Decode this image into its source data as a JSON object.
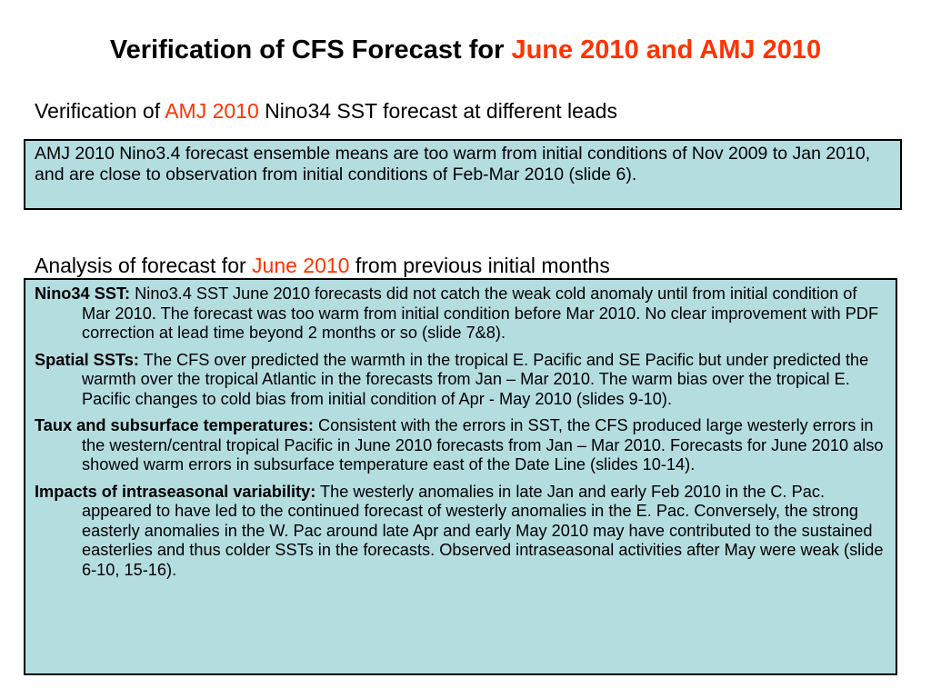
{
  "title": {
    "prefix": "Verification of CFS Forecast for ",
    "highlight": "June 2010 and AMJ 2010"
  },
  "section1": {
    "heading_prefix": "Verification of ",
    "heading_highlight": "AMJ 2010",
    "heading_suffix": " Nino34 SST forecast at different leads",
    "box_text": "AMJ 2010 Nino3.4 forecast ensemble means are too warm from initial conditions of Nov 2009 to Jan 2010, and are close to observation from initial conditions of Feb-Mar 2010 (slide 6)."
  },
  "section2": {
    "heading_prefix": "Analysis of forecast for ",
    "heading_highlight": "June 2010",
    "heading_suffix": " from previous initial months",
    "items": [
      {
        "label": "Nino34 SST:",
        "text": " Nino3.4 SST June 2010 forecasts did not catch the weak cold anomaly until from initial condition of Mar 2010. The forecast was too warm from initial condition before Mar 2010. No clear improvement with PDF correction at lead time beyond 2 months or so (slide 7&8)."
      },
      {
        "label": "Spatial SSTs:",
        "text": " The CFS over predicted the warmth in the tropical E. Pacific and SE Pacific but under predicted the warmth over the tropical Atlantic in the forecasts from Jan – Mar 2010. The warm bias over the tropical E. Pacific changes to cold bias from initial condition of Apr - May 2010 (slides 9-10)."
      },
      {
        "label": "Taux and subsurface temperatures:",
        "text": " Consistent with the errors in SST, the CFS produced large westerly errors in the western/central tropical Pacific in June 2010 forecasts from Jan – Mar 2010.  Forecasts for June 2010 also showed warm errors in subsurface temperature east of the Date Line (slides 10-14)."
      },
      {
        "label": "Impacts of intraseasonal variability:",
        "text": " The westerly anomalies in late Jan and early Feb 2010 in the C. Pac. appeared to have led to the continued forecast of westerly anomalies in the E. Pac.  Conversely, the strong easterly anomalies in the W. Pac around late Apr and early May 2010 may have contributed to the sustained easterlies and thus colder SSTs in the forecasts.  Observed intraseasonal activities after May were weak (slide 6-10, 15-16)."
      }
    ]
  }
}
